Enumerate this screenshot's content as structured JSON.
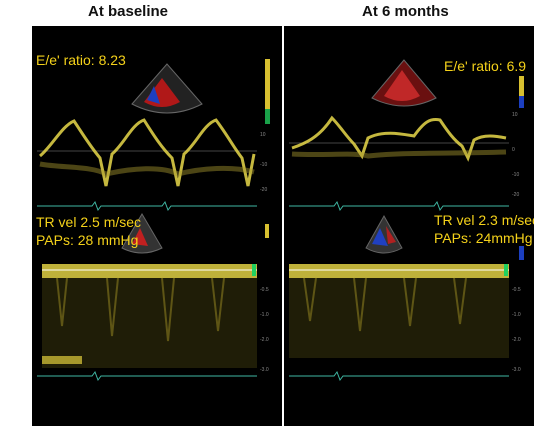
{
  "headers": {
    "left": "At baseline",
    "right": "At 6 months"
  },
  "baseline": {
    "ratio_label": "E/e' ratio: 8.23",
    "tr_label": "TR vel 2.5 m/sec",
    "paps_label": "PAPs: 28 mmHg"
  },
  "six_months": {
    "ratio_label": "E/e' ratio: 6.9",
    "tr_label": "TR vel 2.3 m/sec",
    "paps_label": "PAPs: 24mmHg"
  },
  "colors": {
    "text_accent": "#f5d21a",
    "background": "#000000",
    "waveform": "#e8d84a",
    "ecg": "#3fb7a3"
  }
}
